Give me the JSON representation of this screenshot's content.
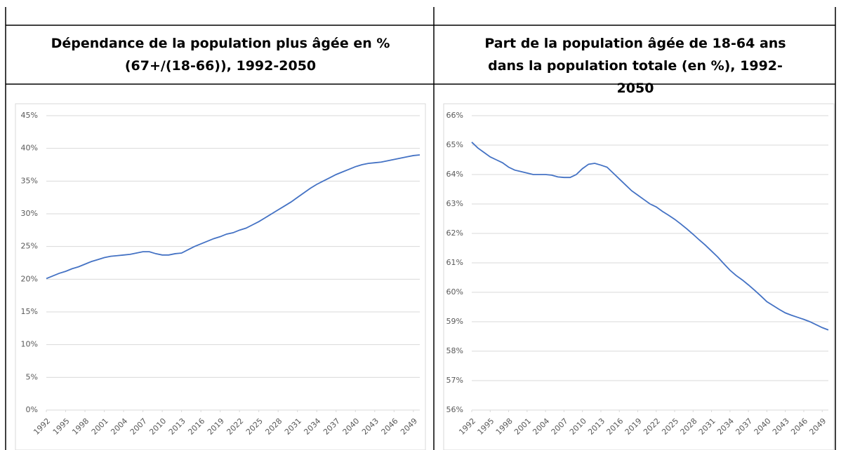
{
  "chart_data": [
    {
      "type": "line",
      "title": "Dépendance de la population plus âgée en % (67+/(18-66)), 1992-2050",
      "x": [
        1992,
        1993,
        1994,
        1995,
        1996,
        1997,
        1998,
        1999,
        2000,
        2001,
        2002,
        2003,
        2004,
        2005,
        2006,
        2007,
        2008,
        2009,
        2010,
        2011,
        2012,
        2013,
        2014,
        2015,
        2016,
        2017,
        2018,
        2019,
        2020,
        2021,
        2022,
        2023,
        2024,
        2025,
        2026,
        2027,
        2028,
        2029,
        2030,
        2031,
        2032,
        2033,
        2034,
        2035,
        2036,
        2037,
        2038,
        2039,
        2040,
        2041,
        2042,
        2043,
        2044,
        2045,
        2046,
        2047,
        2048,
        2049,
        2050
      ],
      "values": [
        20.1,
        20.5,
        20.9,
        21.2,
        21.6,
        21.9,
        22.3,
        22.7,
        23.0,
        23.3,
        23.5,
        23.6,
        23.7,
        23.8,
        24.0,
        24.2,
        24.2,
        23.9,
        23.7,
        23.7,
        23.9,
        24.0,
        24.5,
        25.0,
        25.4,
        25.8,
        26.2,
        26.5,
        26.9,
        27.1,
        27.5,
        27.8,
        28.3,
        28.8,
        29.4,
        30.0,
        30.6,
        31.2,
        31.8,
        32.5,
        33.2,
        33.9,
        34.5,
        35.0,
        35.5,
        36.0,
        36.4,
        36.8,
        37.2,
        37.5,
        37.7,
        37.8,
        37.9,
        38.1,
        38.3,
        38.5,
        38.7,
        38.9,
        39.0
      ],
      "color": "#4472c4",
      "xlim": [
        1992,
        2050
      ],
      "xticks": [
        1992,
        1995,
        1998,
        2001,
        2004,
        2007,
        2010,
        2013,
        2016,
        2019,
        2022,
        2025,
        2028,
        2031,
        2034,
        2037,
        2040,
        2043,
        2046,
        2049
      ],
      "ylim": [
        0,
        45
      ],
      "yticks": [
        {
          "value": 0,
          "label": "0%"
        },
        {
          "value": 5,
          "label": "5%"
        },
        {
          "value": 10,
          "label": "10%"
        },
        {
          "value": 15,
          "label": "15%"
        },
        {
          "value": 20,
          "label": "20%"
        },
        {
          "value": 25,
          "label": "25%"
        },
        {
          "value": 30,
          "label": "30%"
        },
        {
          "value": 35,
          "label": "35%"
        },
        {
          "value": 40,
          "label": "40%"
        },
        {
          "value": 45,
          "label": "45%"
        }
      ],
      "grid": true
    },
    {
      "type": "line",
      "title": "Part de la population âgée de 18-64 ans dans la population totale (en %), 1992-2050",
      "x": [
        1992,
        1993,
        1994,
        1995,
        1996,
        1997,
        1998,
        1999,
        2000,
        2001,
        2002,
        2003,
        2004,
        2005,
        2006,
        2007,
        2008,
        2009,
        2010,
        2011,
        2012,
        2013,
        2014,
        2015,
        2016,
        2017,
        2018,
        2019,
        2020,
        2021,
        2022,
        2023,
        2024,
        2025,
        2026,
        2027,
        2028,
        2029,
        2030,
        2031,
        2032,
        2033,
        2034,
        2035,
        2036,
        2037,
        2038,
        2039,
        2040,
        2041,
        2042,
        2043,
        2044,
        2045,
        2046,
        2047,
        2048,
        2049,
        2050
      ],
      "values": [
        65.1,
        64.9,
        64.75,
        64.6,
        64.5,
        64.4,
        64.25,
        64.15,
        64.1,
        64.05,
        64.0,
        64.0,
        64.0,
        63.98,
        63.92,
        63.9,
        63.9,
        64.0,
        64.2,
        64.35,
        64.38,
        64.32,
        64.25,
        64.05,
        63.85,
        63.65,
        63.45,
        63.3,
        63.15,
        63.0,
        62.9,
        62.75,
        62.62,
        62.48,
        62.32,
        62.15,
        61.97,
        61.78,
        61.6,
        61.4,
        61.2,
        60.97,
        60.75,
        60.57,
        60.42,
        60.25,
        60.07,
        59.88,
        59.68,
        59.55,
        59.42,
        59.3,
        59.22,
        59.15,
        59.08,
        59.0,
        58.9,
        58.8,
        58.72
      ],
      "color": "#4472c4",
      "xlim": [
        1992,
        2050
      ],
      "xticks": [
        1992,
        1995,
        1998,
        2001,
        2004,
        2007,
        2010,
        2013,
        2016,
        2019,
        2022,
        2025,
        2028,
        2031,
        2034,
        2037,
        2040,
        2043,
        2046,
        2049
      ],
      "ylim": [
        56,
        66
      ],
      "yticks": [
        {
          "value": 56,
          "label": "56%"
        },
        {
          "value": 57,
          "label": "57%"
        },
        {
          "value": 58,
          "label": "58%"
        },
        {
          "value": 59,
          "label": "59%"
        },
        {
          "value": 60,
          "label": "60%"
        },
        {
          "value": 61,
          "label": "61%"
        },
        {
          "value": 62,
          "label": "62%"
        },
        {
          "value": 63,
          "label": "63%"
        },
        {
          "value": 64,
          "label": "64%"
        },
        {
          "value": 65,
          "label": "65%"
        },
        {
          "value": 66,
          "label": "66%"
        }
      ],
      "grid": true
    }
  ]
}
